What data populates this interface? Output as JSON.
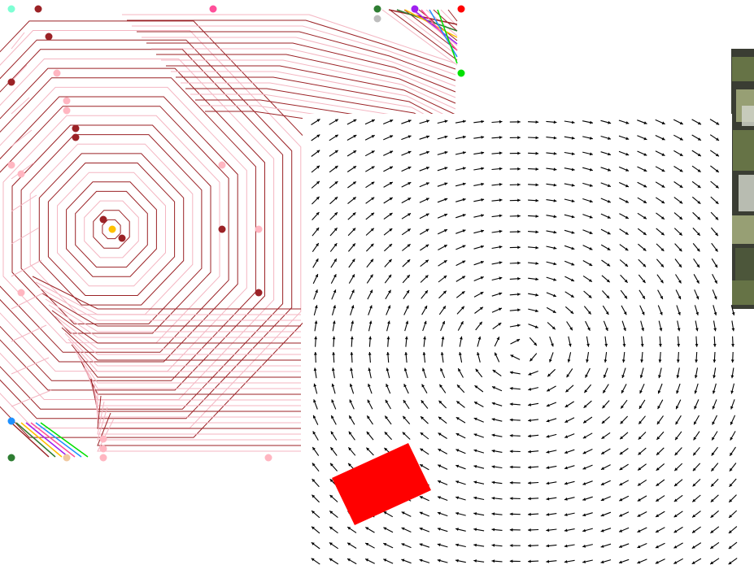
{
  "panels": {
    "contour_map": {
      "contour_colors": [
        "#9b2226",
        "#f4b6c2",
        "#c9a08a",
        "#7a3b00"
      ],
      "contour_levels": 22,
      "markers": [
        {
          "name": "mint-marker",
          "color": "#7fffd4"
        },
        {
          "name": "dark-red-marker",
          "color": "#9b2226"
        },
        {
          "name": "pink-marker",
          "color": "#ff4f9a"
        },
        {
          "name": "green-marker",
          "color": "#2e7d32"
        },
        {
          "name": "gray-marker",
          "color": "#bdbdbd"
        },
        {
          "name": "purple-marker",
          "color": "#a020f0"
        },
        {
          "name": "red-marker",
          "color": "#ff0000"
        },
        {
          "name": "lime-marker",
          "color": "#00e000"
        },
        {
          "name": "light-pink-marker",
          "color": "#ffb6c1"
        },
        {
          "name": "gold-marker",
          "color": "#ffc000"
        },
        {
          "name": "blue-marker",
          "color": "#1e90ff"
        },
        {
          "name": "peach-marker",
          "color": "#f0c8a0"
        }
      ],
      "corner_stripe_colors": [
        "#9b2226",
        "#2e7d32",
        "#ffc000",
        "#a020f0",
        "#ff4f9a",
        "#1e90ff",
        "#00e000"
      ]
    },
    "vector_field": {
      "arrow_color": "#000000",
      "rows": 29,
      "cols": 24,
      "obstacle_color": "#ff0000"
    },
    "photo_strip": {
      "tones": [
        "#3a3d33",
        "#6e7d4a",
        "#a8b080",
        "#cfd2c8",
        "#505a3c"
      ]
    }
  }
}
